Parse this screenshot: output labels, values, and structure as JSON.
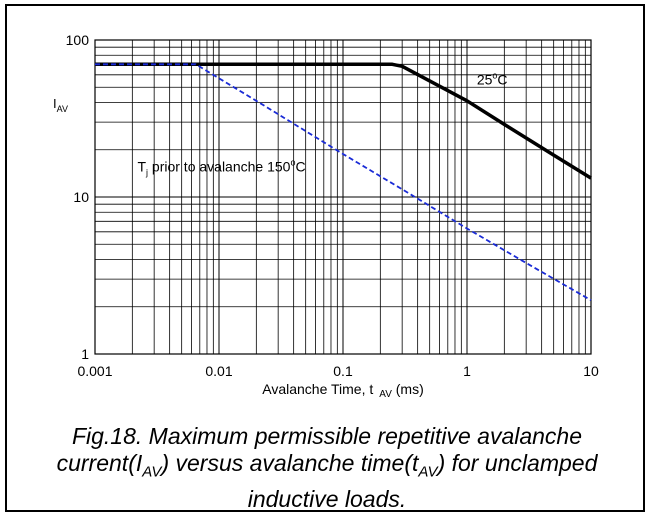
{
  "chart_data": {
    "type": "line",
    "x_scale": "log",
    "y_scale": "log",
    "xlim": [
      0.001,
      10
    ],
    "ylim": [
      1,
      100
    ],
    "grid": true,
    "xlabel_prefix": "Avalanche Time, t",
    "xlabel_sub": "AV",
    "xlabel_suffix": " (ms)",
    "ylabel_main": "I",
    "ylabel_sub": "AV",
    "x_ticks": [
      {
        "value": 0.001,
        "label": "0.001"
      },
      {
        "value": 0.01,
        "label": "0.01"
      },
      {
        "value": 0.1,
        "label": "0.1"
      },
      {
        "value": 1,
        "label": "1"
      },
      {
        "value": 10,
        "label": "10"
      }
    ],
    "y_ticks": [
      {
        "value": 1,
        "label": "1"
      },
      {
        "value": 10,
        "label": "10"
      },
      {
        "value": 100,
        "label": "100"
      }
    ],
    "series": [
      {
        "color": "#000000",
        "style": "solid",
        "x": [
          0.001,
          0.25,
          0.3,
          1,
          2,
          5,
          10
        ],
        "y": [
          70,
          70,
          68,
          41,
          29,
          18.5,
          13.2
        ]
      },
      {
        "color": "#1a2bd6",
        "style": "dashed",
        "x": [
          0.001,
          0.0065,
          0.02,
          0.1,
          0.3,
          1,
          3,
          10
        ],
        "y": [
          70,
          70,
          41,
          18.8,
          11.2,
          6.3,
          3.8,
          2.2
        ]
      }
    ],
    "annotations": [
      {
        "text": "25",
        "sup": "o",
        "suffix": "C",
        "x": 1.2,
        "y": 52
      },
      {
        "text_main": "T",
        "sub": "j",
        "text_mid": " prior to avalanche 150",
        "sup": "o",
        "suffix": "C",
        "x": 0.0022,
        "y": 14.5
      }
    ]
  },
  "caption": {
    "line1": "Fig.18.   Maximum permissible repetitive avalanche",
    "line2_a": "current(I",
    "line2_sub1": "AV",
    "line2_b": ") versus avalanche time(t",
    "line2_sub2": "AV",
    "line2_c": ") for unclamped",
    "line3": "inductive loads."
  }
}
